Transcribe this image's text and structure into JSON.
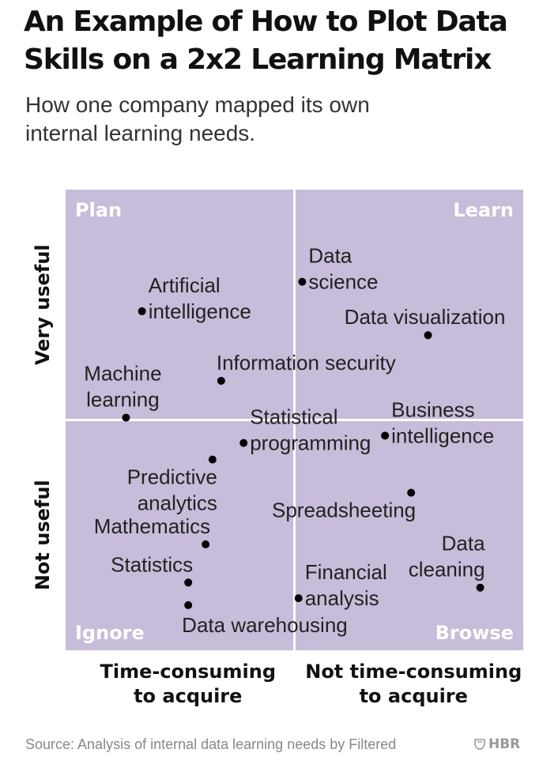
{
  "title_lines": [
    "An Example of How to Plot Data",
    "Skills on a 2x2 Learning Matrix"
  ],
  "subtitle_lines": [
    "How one company mapped its own",
    "internal learning needs."
  ],
  "source": "Source: Analysis of internal data learning needs by Filtered",
  "logo": "HBR",
  "colors": {
    "quadrant_fill": "#c7bcd9",
    "divider": "#ffffff",
    "quadrant_label": "#ffffff",
    "point": "#000000",
    "text": "#111111"
  },
  "chart_data": {
    "type": "scatter",
    "quadrants": {
      "top_left": "Plan",
      "top_right": "Learn",
      "bottom_left": "Ignore",
      "bottom_right": "Browse"
    },
    "y_axis": {
      "top_label": "Very useful",
      "bottom_label": "Not useful"
    },
    "x_axis": {
      "left_label": [
        "Time-consuming",
        "to acquire"
      ],
      "right_label": [
        "Not time-consuming",
        "to acquire"
      ]
    },
    "xlim": [
      0,
      100
    ],
    "ylim": [
      0,
      100
    ],
    "points": [
      {
        "label": [
          "Data",
          "science"
        ],
        "x": 51.7,
        "y": 80.0,
        "label_pos": "right-top"
      },
      {
        "label": [
          "Artificial",
          "intelligence"
        ],
        "x": 16.7,
        "y": 73.6,
        "label_pos": "right-top"
      },
      {
        "label": [
          "Data visualization"
        ],
        "x": 79.2,
        "y": 68.4,
        "label_pos": "above"
      },
      {
        "label": [
          "Information security"
        ],
        "x": 34.0,
        "y": 58.5,
        "label_pos": "above-right"
      },
      {
        "label": [
          "Machine",
          "learning"
        ],
        "x": 13.2,
        "y": 50.5,
        "label_pos": "above"
      },
      {
        "label": [
          "Business",
          "intelligence"
        ],
        "x": 69.8,
        "y": 46.6,
        "label_pos": "right-top"
      },
      {
        "label": [
          "Statistical",
          "programming"
        ],
        "x": 38.9,
        "y": 45.0,
        "label_pos": "right-top"
      },
      {
        "label": [
          "Predictive",
          "analytics"
        ],
        "x": 32.1,
        "y": 41.4,
        "label_pos": "below-left"
      },
      {
        "label": [
          "Spreadsheeting"
        ],
        "x": 75.5,
        "y": 34.2,
        "label_pos": "below-left"
      },
      {
        "label": [
          "Mathematics"
        ],
        "x": 30.6,
        "y": 23.0,
        "label_pos": "above-left"
      },
      {
        "label": [
          "Data",
          "cleaning"
        ],
        "x": 90.6,
        "y": 13.6,
        "label_pos": "above-left"
      },
      {
        "label": [
          "Statistics"
        ],
        "x": 26.8,
        "y": 14.7,
        "label_pos": "above-left"
      },
      {
        "label": [
          "Financial",
          "analysis"
        ],
        "x": 50.9,
        "y": 11.3,
        "label_pos": "right-top"
      },
      {
        "label": [
          "Data warehousing"
        ],
        "x": 26.8,
        "y": 9.8,
        "label_pos": "below-right"
      }
    ]
  }
}
